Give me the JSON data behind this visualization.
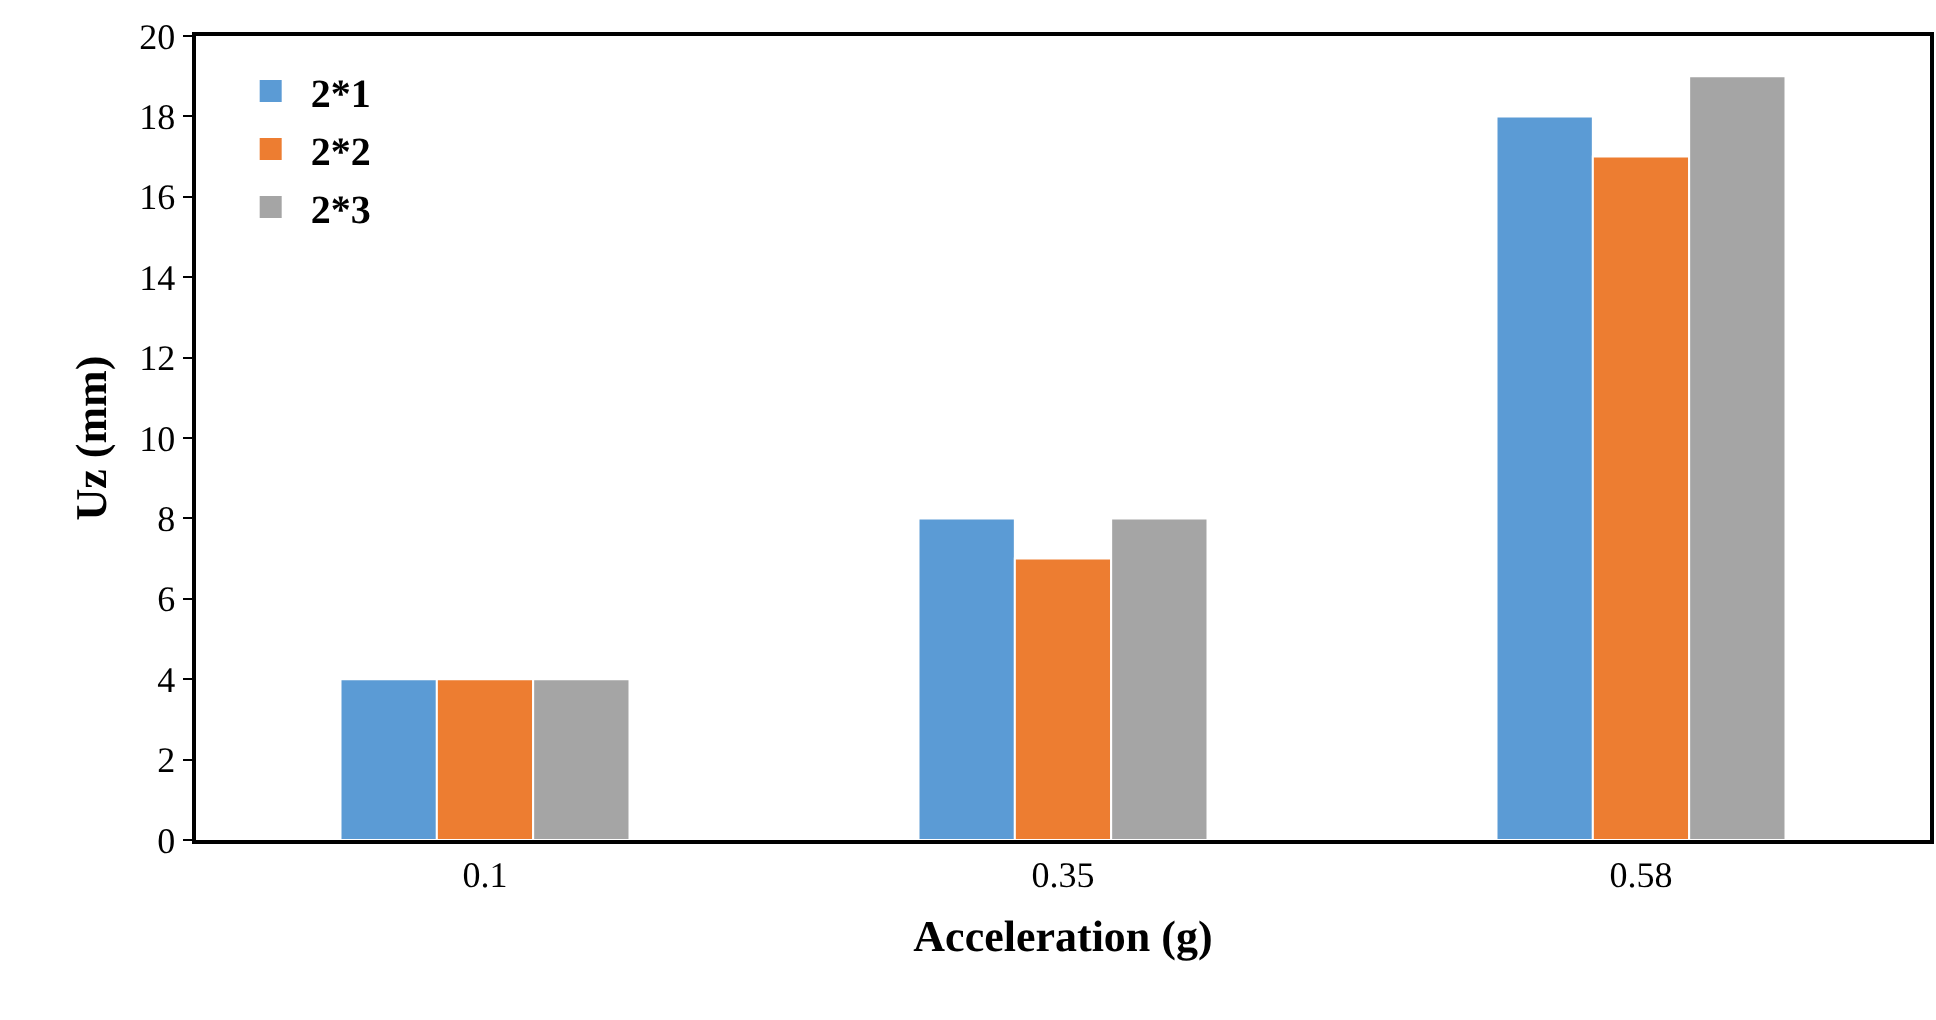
{
  "chart_data": {
    "type": "bar",
    "xlabel": "Acceleration (g)",
    "ylabel": "Uz (mm)",
    "categories": [
      "0.1",
      "0.35",
      "0.58"
    ],
    "series": [
      {
        "name": "2*1",
        "color": "#5b9bd5",
        "values": [
          4,
          8,
          18
        ]
      },
      {
        "name": "2*2",
        "color": "#ed7d31",
        "values": [
          4,
          7,
          17
        ]
      },
      {
        "name": "2*3",
        "color": "#a5a5a5",
        "values": [
          4,
          8,
          19
        ]
      }
    ],
    "ylim": [
      0,
      20
    ],
    "yticks": [
      0,
      2,
      4,
      6,
      8,
      10,
      12,
      14,
      16,
      18,
      20
    ],
    "grid": false,
    "legend": "top left"
  }
}
